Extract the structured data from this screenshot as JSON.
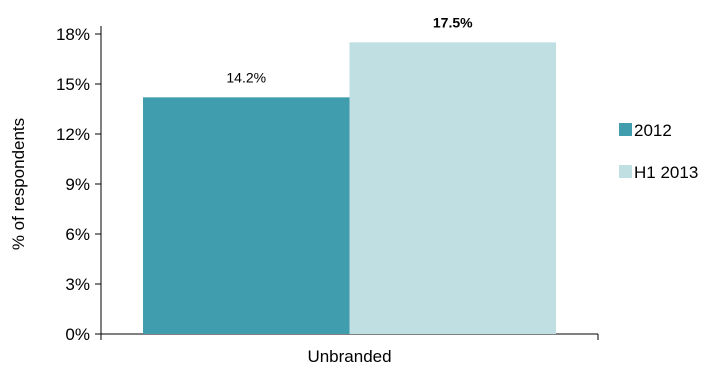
{
  "chart_data": {
    "type": "bar",
    "categories": [
      "Unbranded"
    ],
    "series": [
      {
        "name": "2012",
        "values": [
          14.2
        ],
        "color": "#3f9dae",
        "label": "14.2%",
        "label_bold": false
      },
      {
        "name": "H1 2013",
        "values": [
          17.5
        ],
        "color": "#bfdfe3",
        "label": "17.5%",
        "label_bold": true
      }
    ],
    "ylabel": "% of respondents",
    "ylim": [
      0,
      18
    ],
    "yticks": [
      0,
      3,
      6,
      9,
      12,
      15,
      18
    ],
    "ytick_labels": [
      "0%",
      "3%",
      "6%",
      "9%",
      "12%",
      "15%",
      "18%"
    ],
    "legend_position": "right",
    "grid": false
  }
}
